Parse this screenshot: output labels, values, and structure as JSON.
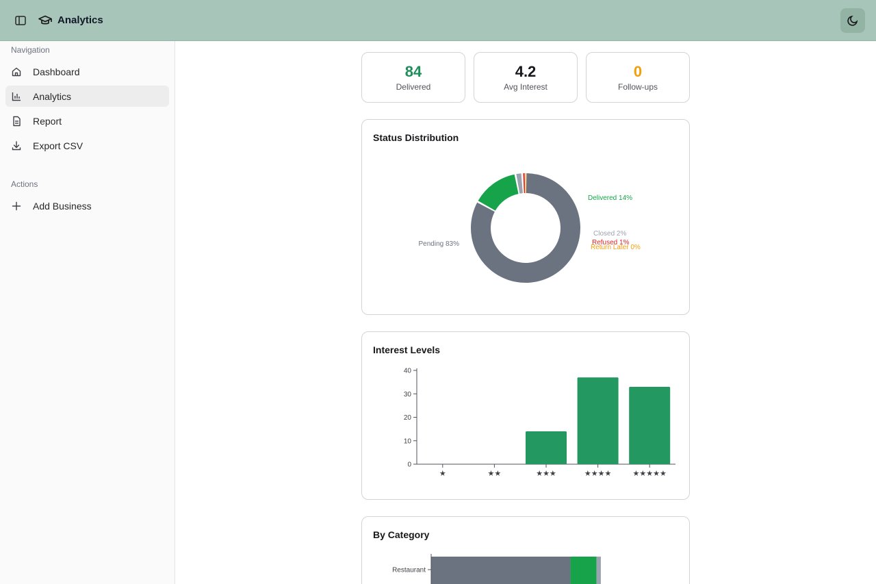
{
  "header": {
    "title": "Analytics"
  },
  "sidebar": {
    "groups": [
      {
        "label": "Navigation",
        "items": [
          {
            "label": "Dashboard",
            "icon": "home-icon"
          },
          {
            "label": "Analytics",
            "icon": "bar-chart-icon",
            "active": true
          },
          {
            "label": "Report",
            "icon": "document-icon"
          },
          {
            "label": "Export CSV",
            "icon": "download-icon"
          }
        ]
      },
      {
        "label": "Actions",
        "items": [
          {
            "label": "Add Business",
            "icon": "plus-icon"
          }
        ]
      }
    ]
  },
  "stats": [
    {
      "value": "84",
      "label": "Delivered",
      "color": "#1e8f5a"
    },
    {
      "value": "4.2",
      "label": "Avg Interest",
      "color": "#18181b"
    },
    {
      "value": "0",
      "label": "Follow-ups",
      "color": "#f59e0b"
    }
  ],
  "panels": {
    "status": "Status Distribution",
    "interest": "Interest Levels",
    "category": "By Category"
  },
  "chart_data": [
    {
      "type": "pie",
      "title": "Status Distribution",
      "labels": [
        "Pending 83%",
        "Delivered 14%",
        "Closed 2%",
        "Refused 1%",
        "Return Later 0%"
      ],
      "values": [
        83,
        14,
        2,
        1,
        0
      ],
      "colors": [
        "#6b7280",
        "#16a34a",
        "#9ca3af",
        "#dc2626",
        "#f59e0b"
      ]
    },
    {
      "type": "bar",
      "title": "Interest Levels",
      "categories": [
        "★",
        "★★",
        "★★★",
        "★★★★",
        "★★★★★"
      ],
      "values": [
        0,
        0,
        14,
        37,
        33
      ],
      "ylim": [
        0,
        40
      ],
      "yticks": [
        "0",
        "10",
        "20",
        "30",
        "40"
      ],
      "color": "#249861"
    },
    {
      "type": "bar",
      "title": "By Category",
      "categories": [
        "Restaurant"
      ],
      "series": [
        {
          "values": [
            48
          ]
        },
        {
          "values": [
            9
          ]
        },
        {
          "values": [
            1.5
          ]
        }
      ],
      "colors": [
        "#6b7280",
        "#16a34a",
        "#9ca3af"
      ]
    }
  ]
}
